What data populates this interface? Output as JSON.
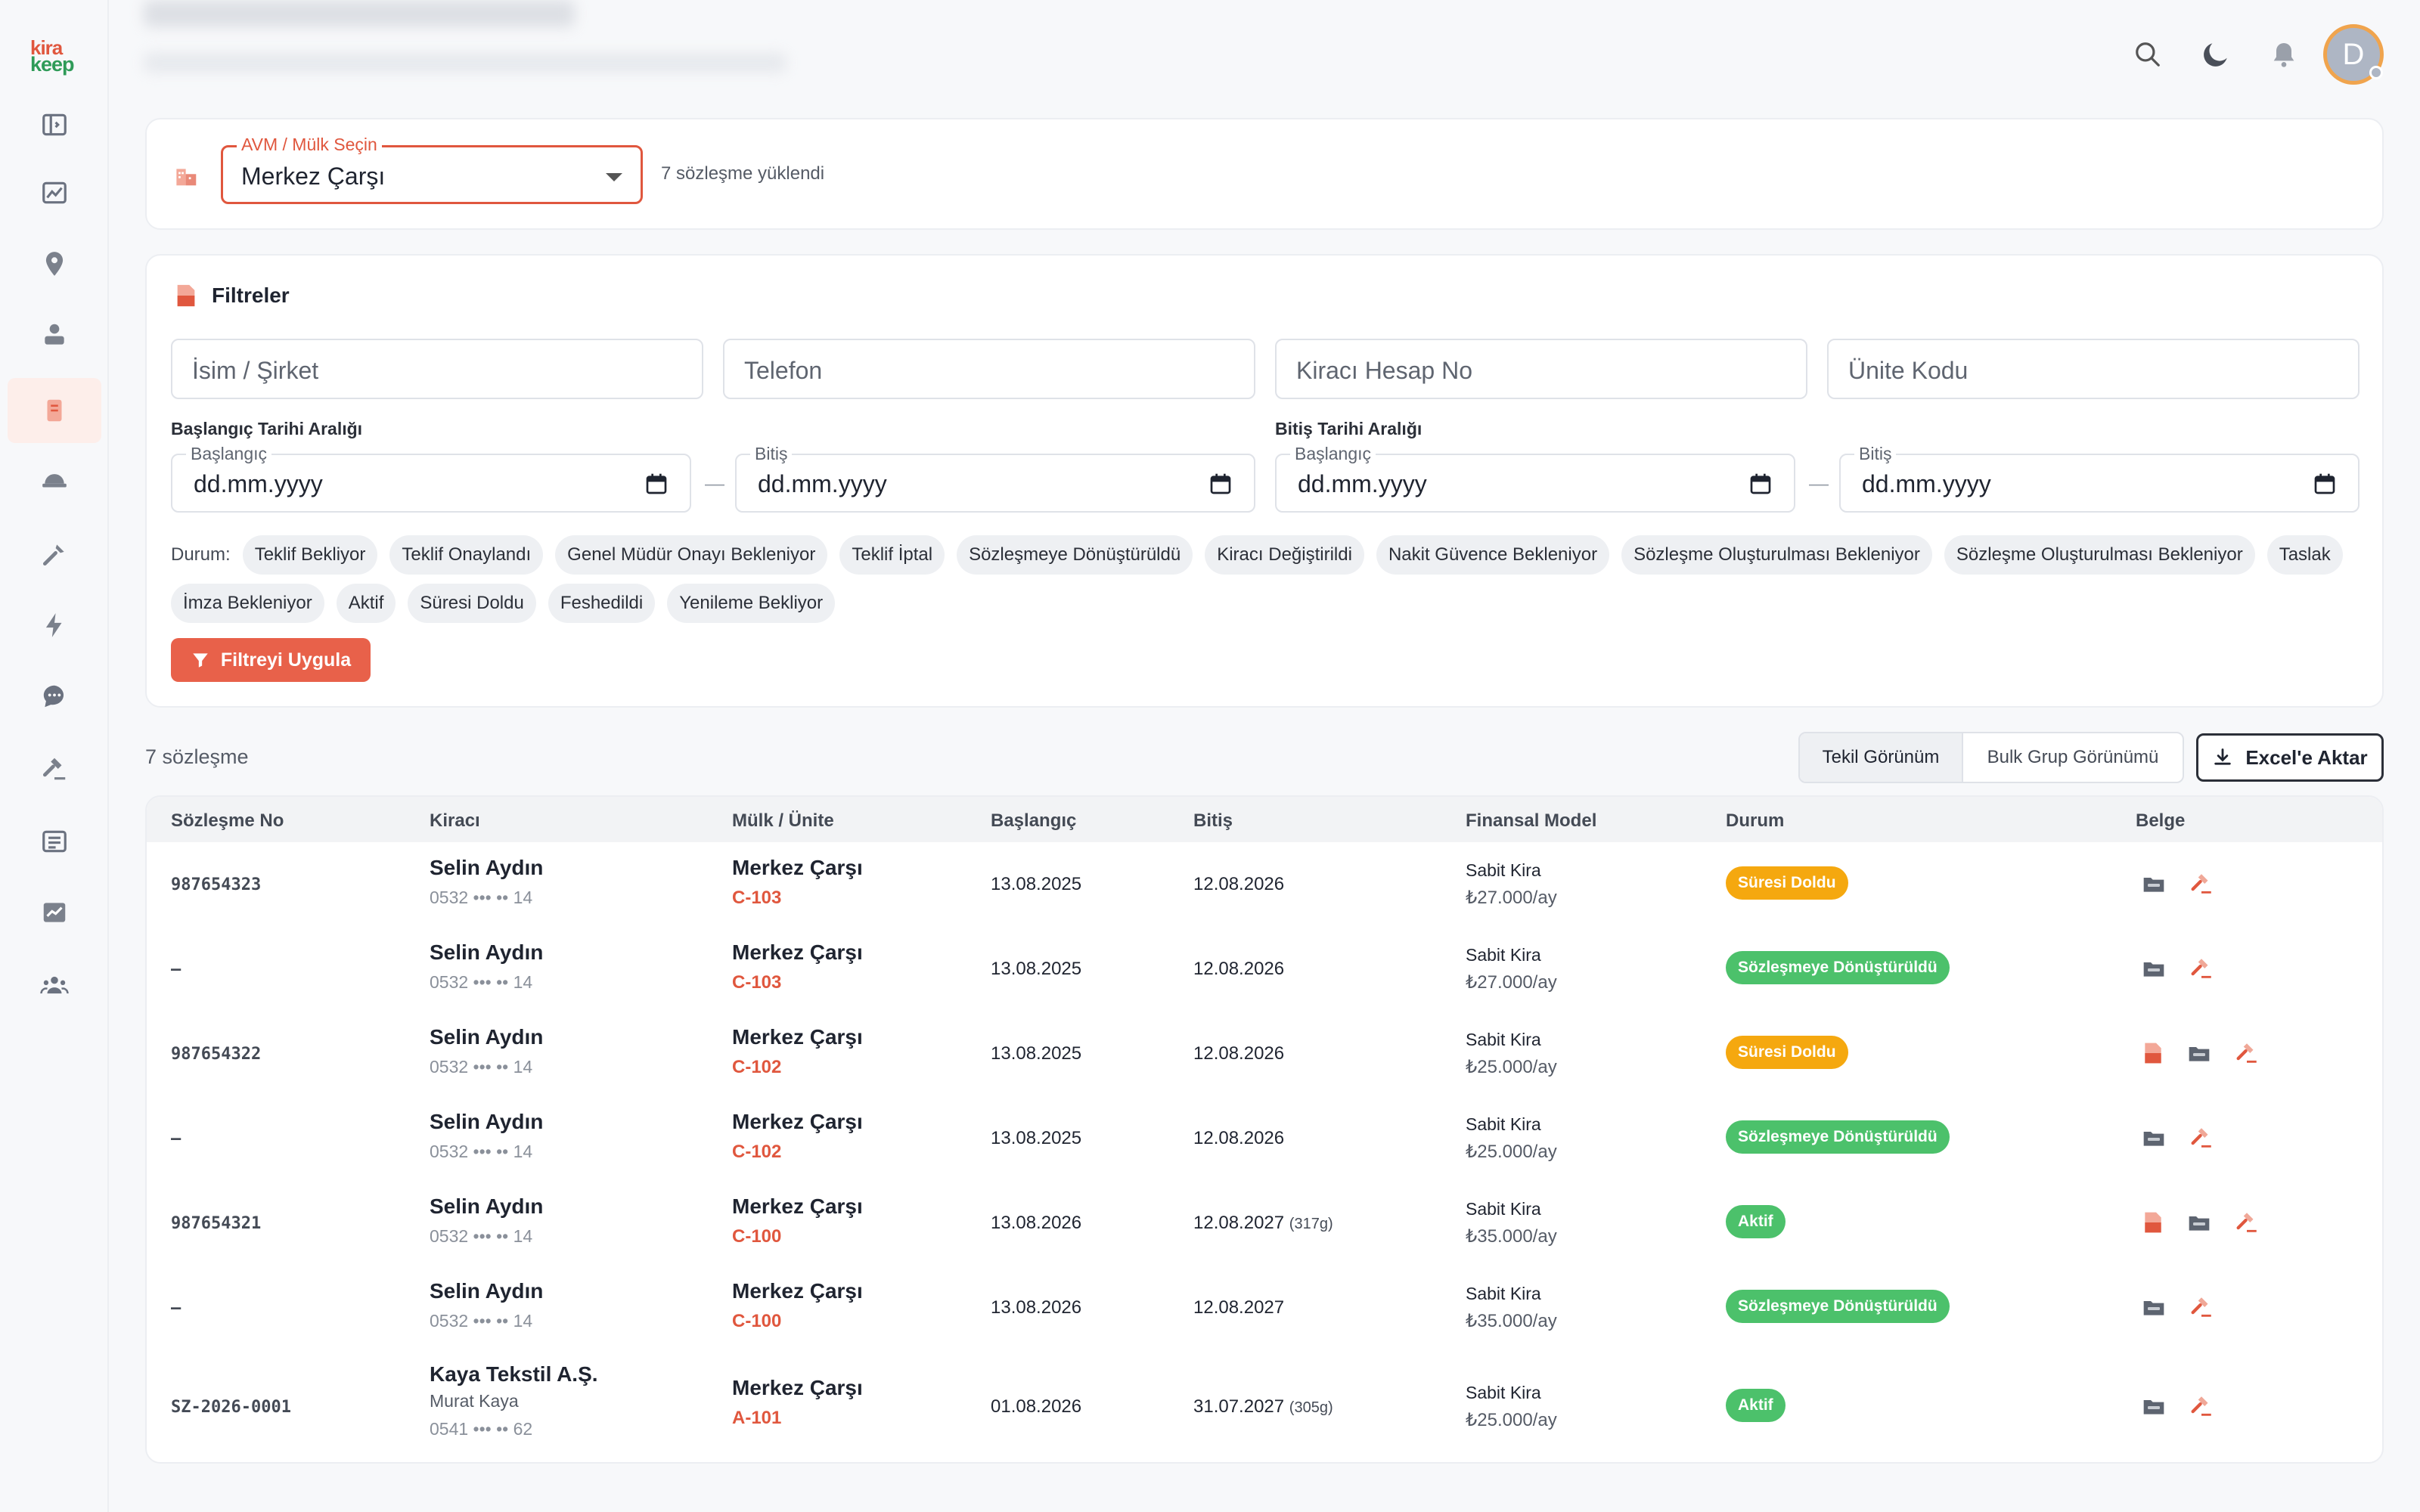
{
  "app": {
    "logo_line1": "kira",
    "logo_line2": "keep",
    "user_initial": "D"
  },
  "colors": {
    "accent": "#e0573e",
    "status_expired": "#f5a80f",
    "status_converted": "#4cc16b",
    "status_active": "#4cc16b"
  },
  "sidebar_icons": [
    "panel-icon",
    "chart-icon",
    "location-pin-icon",
    "stamp-icon",
    "document-icon",
    "hardhat-icon",
    "tools-icon",
    "lightning-icon",
    "chat-icon",
    "gavel-icon",
    "list-icon",
    "trend-icon",
    "users-icon"
  ],
  "property": {
    "label": "AVM / Mülk Seçin",
    "selected": "Merkez Çarşı",
    "loaded_text": "7 sözleşme yüklendi"
  },
  "filters": {
    "title": "Filtreler",
    "name_placeholder": "İsim / Şirket",
    "phone_placeholder": "Telefon",
    "account_placeholder": "Kiracı Hesap No",
    "unit_placeholder": "Ünite Kodu",
    "start_range_label": "Başlangıç Tarihi Aralığı",
    "end_range_label": "Bitiş Tarihi Aralığı",
    "from_label": "Başlangıç",
    "to_label": "Bitiş",
    "date_placeholder": "dd.mm.yyyy",
    "status_label": "Durum:",
    "statuses": [
      "Teklif Bekliyor",
      "Teklif Onaylandı",
      "Genel Müdür Onayı Bekleniyor",
      "Teklif İptal",
      "Sözleşmeye Dönüştürüldü",
      "Kiracı Değiştirildi",
      "Nakit Güvence Bekleniyor",
      "Sözleşme Oluşturulması Bekleniyor",
      "Sözleşme Oluşturulması Bekleniyor",
      "Taslak",
      "İmza Bekleniyor",
      "Aktif",
      "Süresi Doldu",
      "Feshedildi",
      "Yenileme Bekliyor"
    ],
    "apply_label": "Filtreyi Uygula"
  },
  "list": {
    "count_text": "7 sözleşme",
    "view_single": "Tekil Görünüm",
    "view_bulk": "Bulk Grup Görünümü",
    "export_label": "Excel'e Aktar"
  },
  "table": {
    "headers": {
      "no": "Sözleşme No",
      "tenant": "Kiracı",
      "property": "Mülk / Ünite",
      "start": "Başlangıç",
      "end": "Bitiş",
      "finance": "Finansal Model",
      "status": "Durum",
      "docs": "Belge"
    },
    "rows": [
      {
        "no": "987654323",
        "tenant": "Selin Aydın",
        "contact": "",
        "phone": "0532 ••• •• 14",
        "property": "Merkez Çarşı",
        "unit": "C-103",
        "start": "13.08.2025",
        "end": "12.08.2026",
        "remaining": "",
        "model": "Sabit Kira",
        "rent": "₺27.000/ay",
        "status": "Süresi Doldu",
        "status_color": "#f5a80f",
        "docs": [
          "folder-icon",
          "gavel-icon"
        ]
      },
      {
        "no": "–",
        "tenant": "Selin Aydın",
        "contact": "",
        "phone": "0532 ••• •• 14",
        "property": "Merkez Çarşı",
        "unit": "C-103",
        "start": "13.08.2025",
        "end": "12.08.2026",
        "remaining": "",
        "model": "Sabit Kira",
        "rent": "₺27.000/ay",
        "status": "Sözleşmeye Dönüştürüldü",
        "status_color": "#4cc16b",
        "docs": [
          "folder-icon",
          "gavel-icon"
        ]
      },
      {
        "no": "987654322",
        "tenant": "Selin Aydın",
        "contact": "",
        "phone": "0532 ••• •• 14",
        "property": "Merkez Çarşı",
        "unit": "C-102",
        "start": "13.08.2025",
        "end": "12.08.2026",
        "remaining": "",
        "model": "Sabit Kira",
        "rent": "₺25.000/ay",
        "status": "Süresi Doldu",
        "status_color": "#f5a80f",
        "docs": [
          "pdf-icon",
          "folder-icon",
          "gavel-icon"
        ]
      },
      {
        "no": "–",
        "tenant": "Selin Aydın",
        "contact": "",
        "phone": "0532 ••• •• 14",
        "property": "Merkez Çarşı",
        "unit": "C-102",
        "start": "13.08.2025",
        "end": "12.08.2026",
        "remaining": "",
        "model": "Sabit Kira",
        "rent": "₺25.000/ay",
        "status": "Sözleşmeye Dönüştürüldü",
        "status_color": "#4cc16b",
        "docs": [
          "folder-icon",
          "gavel-icon"
        ]
      },
      {
        "no": "987654321",
        "tenant": "Selin Aydın",
        "contact": "",
        "phone": "0532 ••• •• 14",
        "property": "Merkez Çarşı",
        "unit": "C-100",
        "start": "13.08.2026",
        "end": "12.08.2027",
        "remaining": "(317g)",
        "model": "Sabit Kira",
        "rent": "₺35.000/ay",
        "status": "Aktif",
        "status_color": "#4cc16b",
        "docs": [
          "pdf-icon",
          "folder-icon",
          "gavel-icon"
        ]
      },
      {
        "no": "–",
        "tenant": "Selin Aydın",
        "contact": "",
        "phone": "0532 ••• •• 14",
        "property": "Merkez Çarşı",
        "unit": "C-100",
        "start": "13.08.2026",
        "end": "12.08.2027",
        "remaining": "",
        "model": "Sabit Kira",
        "rent": "₺35.000/ay",
        "status": "Sözleşmeye Dönüştürüldü",
        "status_color": "#4cc16b",
        "docs": [
          "folder-icon",
          "gavel-icon"
        ]
      },
      {
        "no": "SZ-2026-0001",
        "tenant": "Kaya Tekstil A.Ş.",
        "contact": "Murat Kaya",
        "phone": "0541 ••• •• 62",
        "property": "Merkez Çarşı",
        "unit": "A-101",
        "start": "01.08.2026",
        "end": "31.07.2027",
        "remaining": "(305g)",
        "model": "Sabit Kira",
        "rent": "₺25.000/ay",
        "status": "Aktif",
        "status_color": "#4cc16b",
        "docs": [
          "folder-icon",
          "gavel-icon"
        ]
      }
    ]
  }
}
